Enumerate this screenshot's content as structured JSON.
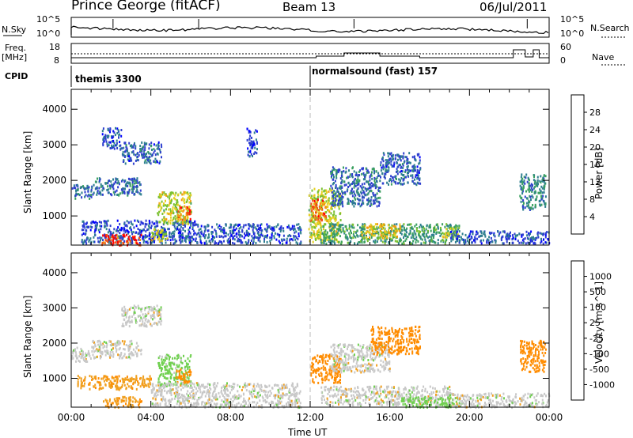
{
  "header": {
    "station": "Prince George (fitACF)",
    "beam": "Beam 13",
    "date": "06/Jul/2011"
  },
  "top_panel": {
    "nsky_label": "N.Sky",
    "nsearch_label": "N.Search",
    "freq_label_line1": "Freq.",
    "freq_label_line2": "[MHz]",
    "nave_label": "Nave",
    "cpid_label": "CPID",
    "noise_ticks_left": [
      "10^5",
      "10^0"
    ],
    "noise_ticks_right": [
      "10^5",
      "10^0"
    ],
    "freq_ticks": [
      "18",
      "8"
    ],
    "nave_ticks": [
      "60",
      "0"
    ],
    "cpid_segments": [
      {
        "start_hour": 0,
        "label": "themis 3300"
      },
      {
        "start_hour": 12,
        "label": "normalsound (fast) 157"
      }
    ]
  },
  "colors": {
    "power_scale": [
      "#0000ff",
      "#2e3fcf",
      "#2e7f8f",
      "#3aa060",
      "#7ac030",
      "#e6d020",
      "#f09a10",
      "#f05010",
      "#ff0000"
    ],
    "velocity_scale": [
      "#0000cc",
      "#2e7f8f",
      "#20a030",
      "#70d050",
      "#c8c8c8",
      "#f0a020",
      "#ff8c00",
      "#f04a10",
      "#ff0000"
    ]
  },
  "chart_data": [
    {
      "type": "heatmap",
      "panel": "power",
      "ylabel": "Slant Range [km]",
      "yticks": [
        1000,
        2000,
        3000,
        4000
      ],
      "ylim": [
        180,
        4560
      ],
      "xlim": [
        0,
        24
      ],
      "colorbar_label": "Power [dB]",
      "colorbar_ticks": [
        "4",
        "8",
        "12",
        "16",
        "20",
        "24",
        "28"
      ],
      "colorbar_range": [
        0,
        32
      ],
      "regions": [
        {
          "t0": 0.5,
          "t1": 6.2,
          "r0": 250,
          "r1": 900,
          "value": 6
        },
        {
          "t0": 0.0,
          "t1": 1.0,
          "r0": 1500,
          "r1": 1900,
          "value": 8
        },
        {
          "t0": 1.0,
          "t1": 3.5,
          "r0": 1600,
          "r1": 2100,
          "value": 8
        },
        {
          "t0": 2.5,
          "t1": 4.5,
          "r0": 2500,
          "r1": 3100,
          "value": 7
        },
        {
          "t0": 1.5,
          "t1": 2.5,
          "r0": 2900,
          "r1": 3500,
          "value": 6
        },
        {
          "t0": 1.5,
          "t1": 3.5,
          "r0": 200,
          "r1": 500,
          "value": 28
        },
        {
          "t0": 4.0,
          "t1": 4.8,
          "r0": 300,
          "r1": 650,
          "value": 18
        },
        {
          "t0": 4.3,
          "t1": 6.0,
          "r0": 800,
          "r1": 1700,
          "value": 18
        },
        {
          "t0": 5.3,
          "t1": 6.0,
          "r0": 900,
          "r1": 1300,
          "value": 26
        },
        {
          "t0": 6.2,
          "t1": 11.5,
          "r0": 250,
          "r1": 800,
          "value": 6
        },
        {
          "t0": 8.8,
          "t1": 9.3,
          "r0": 2700,
          "r1": 3500,
          "value": 5
        },
        {
          "t0": 11.9,
          "t1": 13.5,
          "r0": 300,
          "r1": 1800,
          "value": 18
        },
        {
          "t0": 12.0,
          "t1": 12.8,
          "r0": 900,
          "r1": 1500,
          "value": 26
        },
        {
          "t0": 12.5,
          "t1": 19.5,
          "r0": 250,
          "r1": 800,
          "value": 12
        },
        {
          "t0": 14.5,
          "t1": 16.5,
          "r0": 400,
          "r1": 800,
          "value": 20
        },
        {
          "t0": 13.0,
          "t1": 15.5,
          "r0": 1300,
          "r1": 2400,
          "value": 8
        },
        {
          "t0": 15.5,
          "t1": 17.5,
          "r0": 1900,
          "r1": 2800,
          "value": 7
        },
        {
          "t0": 18.5,
          "t1": 19.5,
          "r0": 400,
          "r1": 700,
          "value": 18
        },
        {
          "t0": 19.0,
          "t1": 24.0,
          "r0": 250,
          "r1": 600,
          "value": 6
        },
        {
          "t0": 22.5,
          "t1": 23.8,
          "r0": 1200,
          "r1": 2200,
          "value": 10
        }
      ]
    },
    {
      "type": "heatmap",
      "panel": "velocity",
      "ylabel": "Slant Range [km]",
      "yticks": [
        1000,
        2000,
        3000,
        4000
      ],
      "ylim": [
        180,
        4560
      ],
      "xlim": [
        0,
        24
      ],
      "xlabel": "Time UT",
      "xticks": [
        "00:00",
        "04:00",
        "08:00",
        "12:00",
        "16:00",
        "20:00",
        "00:00"
      ],
      "colorbar_label": "Velocity [m s^-1]",
      "colorbar_ticks": [
        "1000",
        "500",
        "100",
        "25",
        "-25",
        "-100",
        "-500",
        "-1000"
      ],
      "regions": [
        {
          "t0": 0.0,
          "t1": 1.0,
          "r0": 1500,
          "r1": 1900,
          "value": 0
        },
        {
          "t0": 1.0,
          "t1": 3.5,
          "r0": 1600,
          "r1": 2100,
          "value": 0
        },
        {
          "t0": 2.5,
          "t1": 4.5,
          "r0": 2500,
          "r1": 3100,
          "value": 0
        },
        {
          "t0": 0.3,
          "t1": 4.0,
          "r0": 700,
          "r1": 1100,
          "value": -80
        },
        {
          "t0": 1.5,
          "t1": 3.5,
          "r0": 200,
          "r1": 500,
          "value": -80
        },
        {
          "t0": 4.3,
          "t1": 6.0,
          "r0": 800,
          "r1": 1700,
          "value": 50
        },
        {
          "t0": 5.2,
          "t1": 6.0,
          "r0": 900,
          "r1": 1300,
          "value": -150
        },
        {
          "t0": 4.0,
          "t1": 11.5,
          "r0": 200,
          "r1": 900,
          "value": 0
        },
        {
          "t0": 12.0,
          "t1": 13.5,
          "r0": 900,
          "r1": 1700,
          "value": -150
        },
        {
          "t0": 12.5,
          "t1": 19.0,
          "r0": 250,
          "r1": 800,
          "value": 0
        },
        {
          "t0": 13.0,
          "t1": 16.0,
          "r0": 1200,
          "r1": 2000,
          "value": 0
        },
        {
          "t0": 15.0,
          "t1": 17.5,
          "r0": 1700,
          "r1": 2500,
          "value": -150
        },
        {
          "t0": 16.5,
          "t1": 19.5,
          "r0": 200,
          "r1": 500,
          "value": 60
        },
        {
          "t0": 19.0,
          "t1": 24.0,
          "r0": 200,
          "r1": 600,
          "value": 0
        },
        {
          "t0": 22.5,
          "t1": 23.8,
          "r0": 1200,
          "r1": 2100,
          "value": -150
        }
      ]
    }
  ]
}
